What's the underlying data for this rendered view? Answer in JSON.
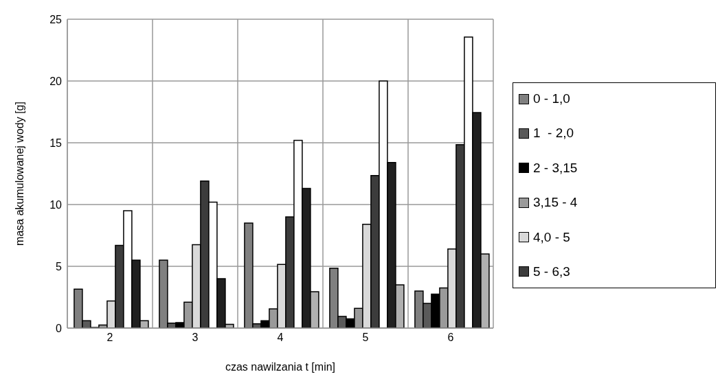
{
  "chart_data": {
    "type": "bar",
    "xlabel": "czas nawilzania t [min]",
    "ylabel": "masa akumulowanej wody [g]",
    "categories": [
      "2",
      "3",
      "4",
      "5",
      "6"
    ],
    "ylim": [
      0,
      25
    ],
    "yticks": [
      0,
      5,
      10,
      15,
      20,
      25
    ],
    "grid": true,
    "legend": "right",
    "series": [
      {
        "name": "0 - 1,0",
        "color": "#808080",
        "values": [
          3.15,
          5.5,
          8.5,
          4.85,
          3.0
        ]
      },
      {
        "name": "1  - 2,0",
        "color": "#5a5a5a",
        "values": [
          0.6,
          0.4,
          0.35,
          0.95,
          2.0
        ]
      },
      {
        "name": "2 - 3,15",
        "color": "#000000",
        "values": [
          0.05,
          0.45,
          0.6,
          0.75,
          2.75
        ]
      },
      {
        "name": "3,15 - 4",
        "color": "#9a9a9a",
        "values": [
          0.25,
          2.1,
          1.55,
          1.6,
          3.25
        ]
      },
      {
        "name": "4,0 - 5",
        "color": "#d9d9d9",
        "values": [
          2.2,
          6.75,
          5.15,
          8.4,
          6.4
        ]
      },
      {
        "name": "5 - 6,3",
        "color": "#3c3c3c",
        "values": [
          6.7,
          11.9,
          9.0,
          12.35,
          14.85
        ]
      },
      {
        "color": "#ffffff",
        "values": [
          9.5,
          10.2,
          15.2,
          20.0,
          23.55
        ]
      },
      {
        "color": "#202020",
        "values": [
          5.5,
          4.0,
          11.3,
          13.4,
          17.45
        ]
      },
      {
        "color": "#b0b0b0",
        "values": [
          0.6,
          0.3,
          2.95,
          3.5,
          6.0
        ]
      }
    ]
  }
}
